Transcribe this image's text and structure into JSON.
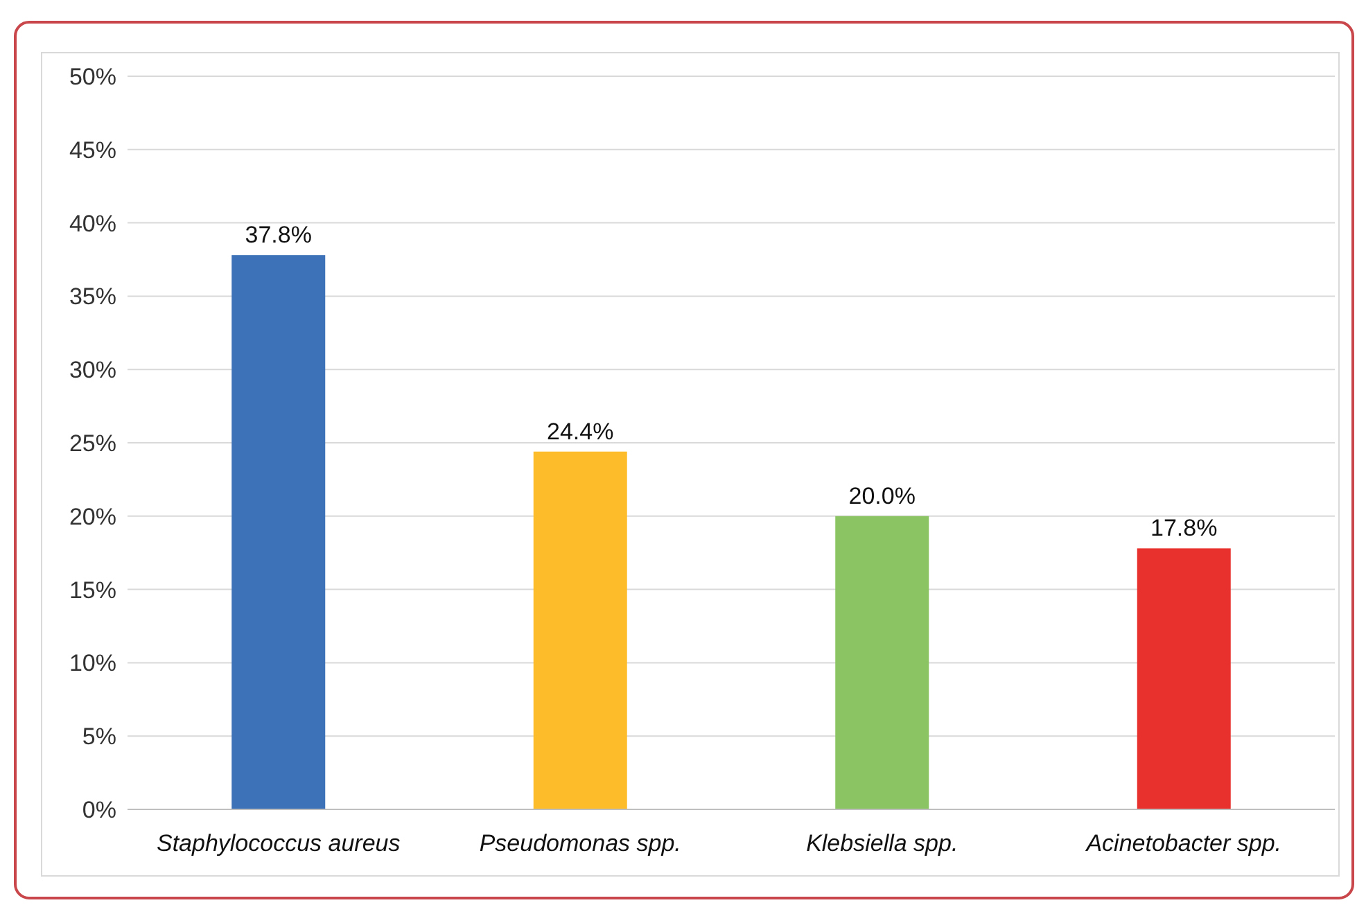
{
  "chart_data": {
    "type": "bar",
    "categories": [
      "Staphylococcus aureus",
      "Pseudomonas spp.",
      "Klebsiella spp.",
      "Acinetobacter spp."
    ],
    "values": [
      37.8,
      24.4,
      20.0,
      17.8
    ],
    "colors": [
      "#3e72b8",
      "#fdbd2a",
      "#8bc563",
      "#e8302c"
    ],
    "value_labels": [
      "37.8%",
      "24.4%",
      "20.0%",
      "17.8%"
    ],
    "ylim": [
      0,
      50
    ],
    "yticks": [
      {
        "value": 0,
        "label": "0%"
      },
      {
        "value": 5,
        "label": "5%"
      },
      {
        "value": 10,
        "label": "10%"
      },
      {
        "value": 15,
        "label": "15%"
      },
      {
        "value": 20,
        "label": "20%"
      },
      {
        "value": 25,
        "label": "25%"
      },
      {
        "value": 30,
        "label": "30%"
      },
      {
        "value": 35,
        "label": "35%"
      },
      {
        "value": 40,
        "label": "40%"
      },
      {
        "value": 45,
        "label": "45%"
      },
      {
        "value": 50,
        "label": "50%"
      }
    ],
    "grid": "y"
  }
}
